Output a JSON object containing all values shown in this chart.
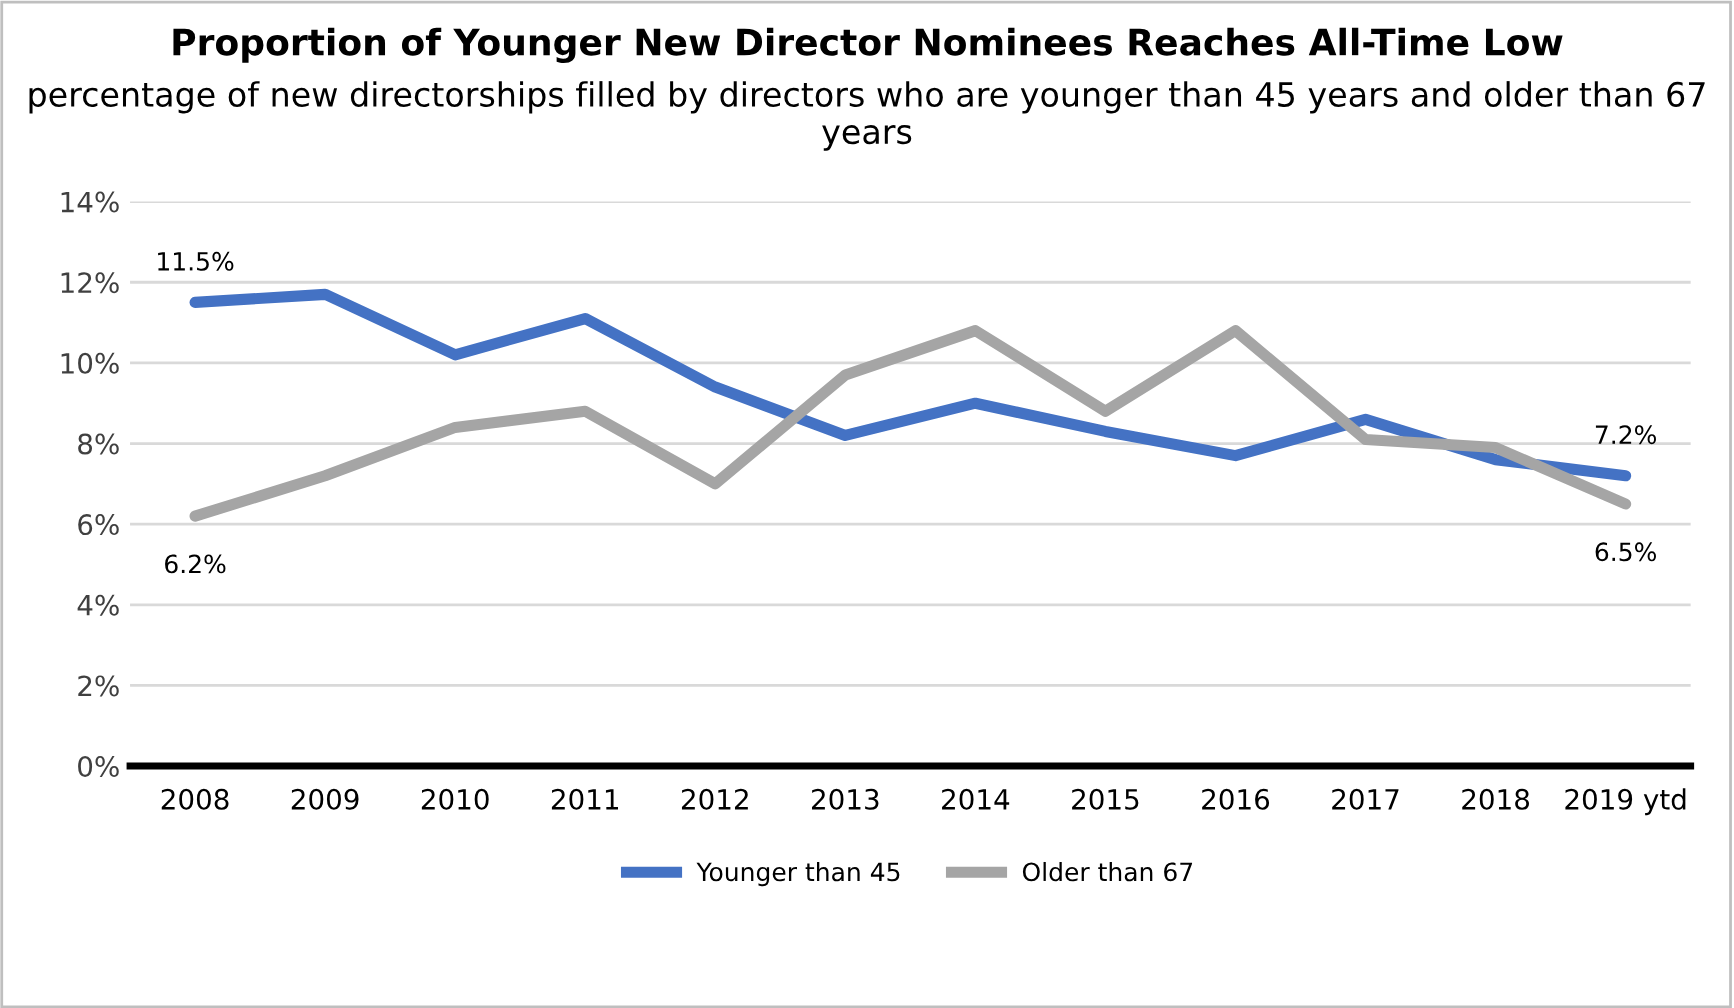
{
  "chart_data": {
    "type": "line",
    "title": "Proportion of Younger New Director Nominees Reaches All-Time Low",
    "subtitle": "percentage of new directorships filled by directors who are younger than 45 years and older than 67 years",
    "categories": [
      "2008",
      "2009",
      "2010",
      "2011",
      "2012",
      "2013",
      "2014",
      "2015",
      "2016",
      "2017",
      "2018",
      "2019 ytd"
    ],
    "series": [
      {
        "name": "Younger than 45",
        "color": "#4472c4",
        "values": [
          11.5,
          11.7,
          10.2,
          11.1,
          9.4,
          8.2,
          9.0,
          8.3,
          7.7,
          8.6,
          7.6,
          7.2
        ],
        "value_labels": [
          "11.5%",
          null,
          null,
          null,
          null,
          null,
          null,
          null,
          null,
          null,
          null,
          "7.2%"
        ]
      },
      {
        "name": "Older than 67",
        "color": "#a5a5a5",
        "values": [
          6.2,
          7.2,
          8.4,
          8.8,
          7.0,
          9.7,
          10.8,
          8.8,
          10.8,
          8.1,
          7.9,
          6.5
        ],
        "value_labels": [
          "6.2%",
          null,
          null,
          null,
          null,
          null,
          null,
          null,
          null,
          null,
          null,
          "6.5%"
        ]
      }
    ],
    "ylim": [
      0,
      14
    ],
    "yticks": [
      {
        "value": 0,
        "label": "0%"
      },
      {
        "value": 2,
        "label": "2%"
      },
      {
        "value": 4,
        "label": "4%"
      },
      {
        "value": 6,
        "label": "6%"
      },
      {
        "value": 8,
        "label": "8%"
      },
      {
        "value": 10,
        "label": "10%"
      },
      {
        "value": 12,
        "label": "12%"
      },
      {
        "value": 14,
        "label": "14%"
      }
    ],
    "grid": "y",
    "legend": "bottom",
    "marker": "none",
    "line_style": "solid"
  }
}
